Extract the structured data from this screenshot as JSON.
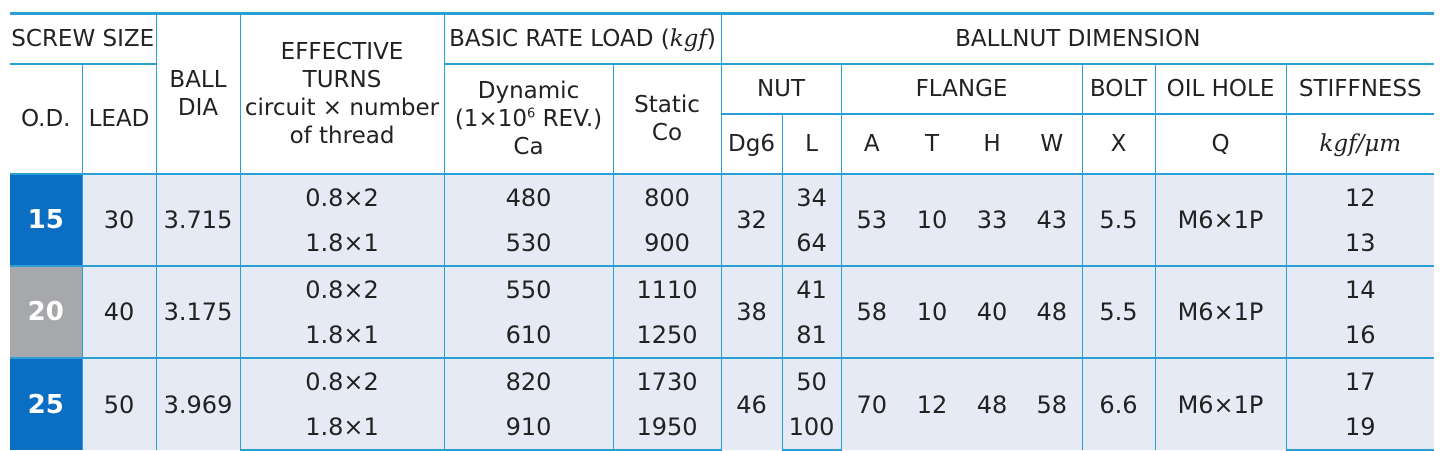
{
  "header": {
    "screw_size": "SCREW SIZE",
    "od": "O.D.",
    "lead": "LEAD",
    "ball_dia": [
      "BALL",
      "DIA"
    ],
    "effective_turns": [
      "EFFECTIVE",
      "TURNS",
      "circuit × number",
      "of thread"
    ],
    "basic_rate_load": "BASIC RATE LOAD (",
    "kgf": "kgf",
    "basic_rate_load_close": ")",
    "dynamic": [
      "Dynamic",
      "(1×10",
      "6",
      " REV.)",
      "Ca"
    ],
    "static": [
      "Static",
      "Co"
    ],
    "ballnut_dimension": "BALLNUT DIMENSION",
    "nut": "NUT",
    "flange": "FLANGE",
    "bolt": "BOLT",
    "oil_hole": "OIL HOLE",
    "stiffness": "STIFFNESS",
    "dg6": "Dg6",
    "l": "L",
    "a": "A",
    "t": "T",
    "h": "H",
    "w": "W",
    "x": "X",
    "q": "Q",
    "stiffness_unit": "kgf/μm"
  },
  "rows": [
    {
      "od": "15",
      "lead": "30",
      "ball_dia": "3.715",
      "turns": [
        "0.8×2",
        "1.8×1"
      ],
      "dynamic": [
        "480",
        "530"
      ],
      "static": [
        "800",
        "900"
      ],
      "dg6": "32",
      "l": [
        "34",
        "64"
      ],
      "a": "53",
      "t": "10",
      "h": "33",
      "w": "43",
      "x": "5.5",
      "q": "M6×1P",
      "stiffness": [
        "12",
        "13"
      ],
      "color": "#0a6fc2"
    },
    {
      "od": "20",
      "lead": "40",
      "ball_dia": "3.175",
      "turns": [
        "0.8×2",
        "1.8×1"
      ],
      "dynamic": [
        "550",
        "610"
      ],
      "static": [
        "1110",
        "1250"
      ],
      "dg6": "38",
      "l": [
        "41",
        "81"
      ],
      "a": "58",
      "t": "10",
      "h": "40",
      "w": "48",
      "x": "5.5",
      "q": "M6×1P",
      "stiffness": [
        "14",
        "16"
      ],
      "color": "#a6a8ab"
    },
    {
      "od": "25",
      "lead": "50",
      "ball_dia": "3.969",
      "turns": [
        "0.8×2",
        "1.8×1"
      ],
      "dynamic": [
        "820",
        "910"
      ],
      "static": [
        "1730",
        "1950"
      ],
      "dg6": "46",
      "l": [
        "50",
        "100"
      ],
      "a": "70",
      "t": "12",
      "h": "48",
      "w": "58",
      "x": "6.6",
      "q": "M6×1P",
      "stiffness": [
        "17",
        "19"
      ],
      "color": "#0a6fc2"
    }
  ],
  "colors": {
    "rule": "#2a9fd6",
    "row_bg": "#e6eaf5",
    "blue": "#0a6fc2",
    "gray": "#a6a8ab"
  }
}
